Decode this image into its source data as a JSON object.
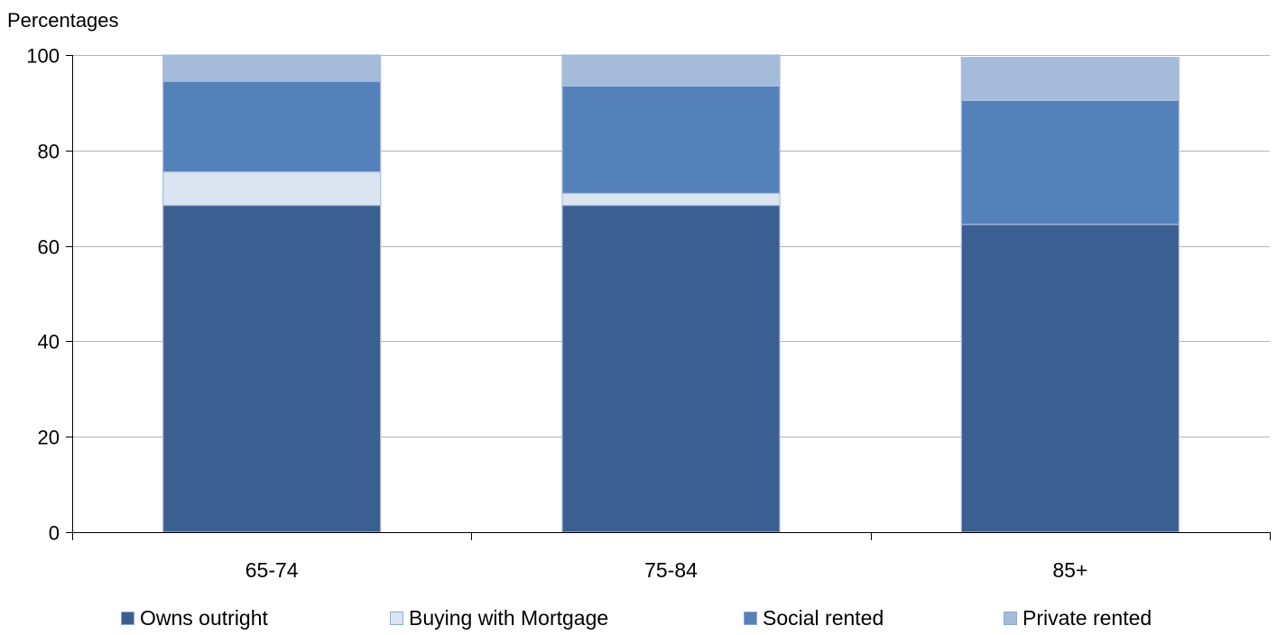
{
  "chart_data": {
    "type": "bar",
    "stacked": true,
    "title": "",
    "ylabel": "Percentages",
    "xlabel": "",
    "ylim": [
      0,
      100
    ],
    "yticks": [
      0,
      20,
      40,
      60,
      80,
      100
    ],
    "grid": true,
    "legend_position": "bottom",
    "categories": [
      "65-74",
      "75-84",
      "85+"
    ],
    "series": [
      {
        "name": "Owns outright",
        "values": [
          68.5,
          68.5,
          64.5
        ],
        "color": "#3b5f91"
      },
      {
        "name": "Buying with Mortgage",
        "values": [
          7.0,
          2.5,
          0.0
        ],
        "color": "#dbe5f1"
      },
      {
        "name": "Social rented",
        "values": [
          19.0,
          22.5,
          26.0
        ],
        "color": "#5581bb"
      },
      {
        "name": "Private rented",
        "values": [
          5.5,
          6.5,
          9.0
        ],
        "color": "#a4bbda"
      }
    ]
  }
}
